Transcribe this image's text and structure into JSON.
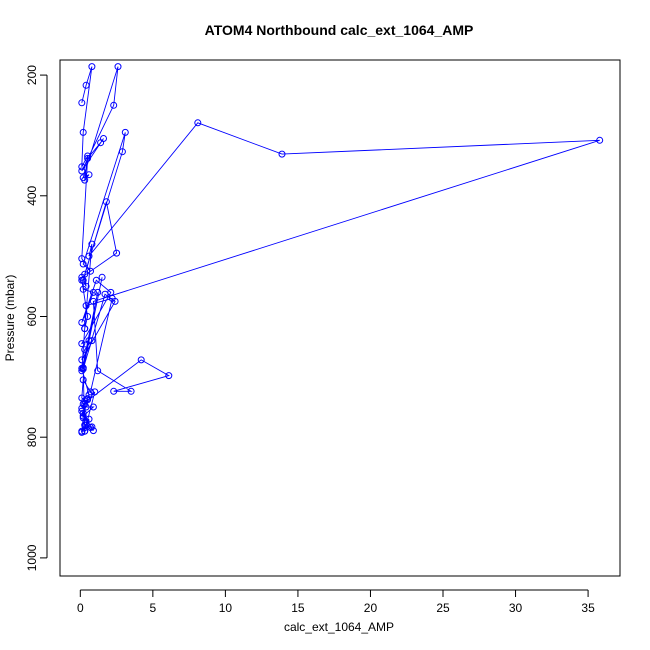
{
  "chart_data": {
    "type": "line",
    "title": "ATOM4 Northbound calc_ext_1064_AMP",
    "xlabel": "calc_ext_1064_AMP",
    "ylabel": "Pressure (mbar)",
    "xlim": [
      -1.4,
      37.2
    ],
    "ylim": [
      1030,
      175
    ],
    "y_reversed": true,
    "x_ticks": [
      0,
      5,
      10,
      15,
      20,
      25,
      30,
      35
    ],
    "y_ticks": [
      200,
      400,
      600,
      800,
      1000
    ],
    "grid": false,
    "legend": "none",
    "series_color": "#0000ff",
    "x": [
      0.1,
      0.4,
      0.8,
      0.2,
      0.1,
      0.5,
      0.3,
      0.6,
      0.2,
      2.6,
      2.3,
      0.1,
      1.6,
      1.4,
      0.5,
      0.1,
      0.7,
      0.2,
      3.1,
      2.9,
      0.3,
      0.4,
      0.2,
      1.8,
      2.5,
      0.1,
      0.2,
      0.9,
      0.1,
      1.1,
      2.1,
      0.1,
      0.6,
      1.5,
      0.2,
      1.7,
      2.4,
      0.1,
      0.3,
      0.8,
      0.2,
      1.2,
      0.1,
      0.3,
      0.4,
      2.2,
      0.7,
      0.2,
      0.1,
      0.3,
      0.5,
      0.2,
      0.9,
      0.4,
      0.1,
      1.0,
      0.3,
      0.1,
      0.6,
      0.4,
      0.1,
      0.2,
      0.2,
      0.3,
      0.5,
      0.6,
      0.1,
      0.2,
      0.3,
      0.7,
      0.8,
      0.3,
      0.9,
      0.1,
      0.4,
      0.2,
      4.2,
      6.1,
      2.3,
      3.5,
      1.2,
      0.9,
      35.8,
      13.9,
      8.1,
      0.6,
      0.8,
      0.3,
      0.5,
      0.1
    ],
    "y": [
      246,
      217,
      186,
      295,
      352,
      334,
      374,
      365,
      370,
      186,
      250,
      359,
      305,
      312,
      338,
      504,
      525,
      513,
      295,
      327,
      530,
      550,
      540,
      410,
      495,
      535,
      555,
      560,
      610,
      540,
      560,
      645,
      640,
      535,
      687,
      563,
      575,
      672,
      655,
      640,
      685,
      560,
      690,
      620,
      582,
      570,
      725,
      705,
      735,
      740,
      738,
      765,
      750,
      750,
      752,
      725,
      790,
      790,
      770,
      780,
      792,
      768,
      760,
      745,
      736,
      730,
      686,
      685,
      790,
      784,
      783,
      780,
      789,
      757,
      774,
      745,
      672,
      698,
      724,
      724,
      690,
      575,
      308,
      331,
      279,
      500,
      480,
      620,
      600,
      540
    ]
  }
}
